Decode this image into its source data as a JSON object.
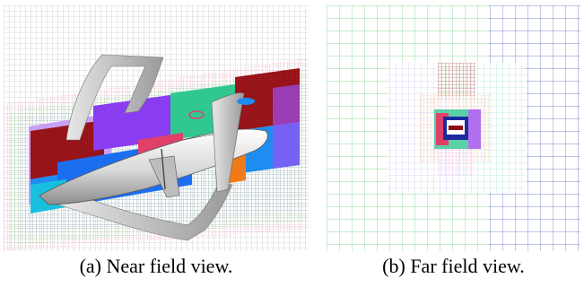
{
  "figure": {
    "panels": [
      {
        "id": "a",
        "caption": "(a) Near field view."
      },
      {
        "id": "b",
        "caption": "(b) Far field view."
      }
    ]
  }
}
